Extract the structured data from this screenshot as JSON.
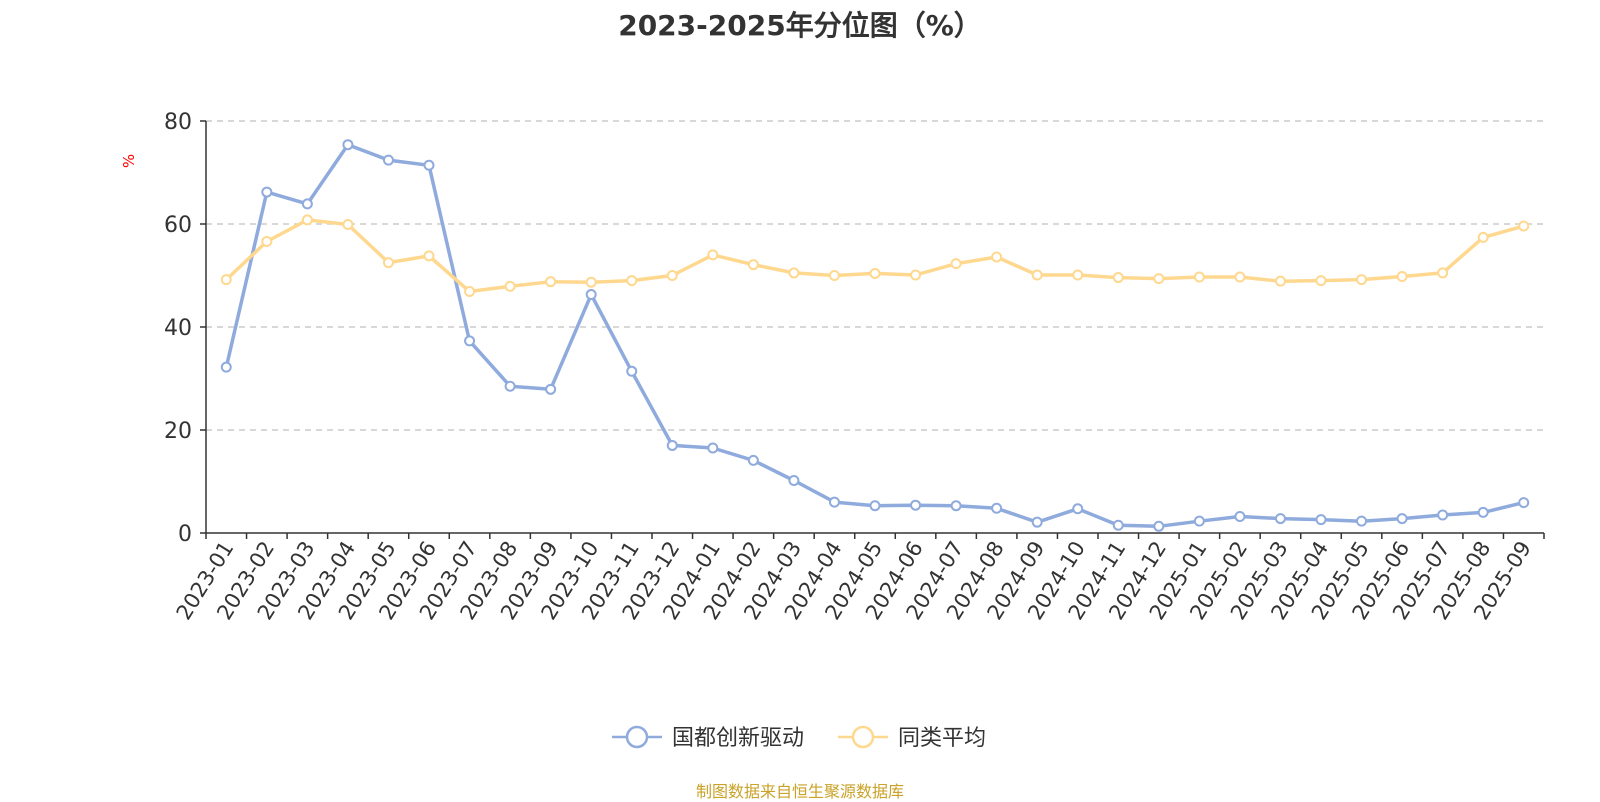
{
  "chart_data": {
    "type": "line",
    "title": "2023-2025年分位图（%）",
    "ylabel": "%",
    "xlabel": "",
    "ylim": [
      0,
      80
    ],
    "yticks": [
      0,
      20,
      40,
      60,
      80
    ],
    "grid": true,
    "legend_position": "bottom-center",
    "categories": [
      "2023-01",
      "2023-02",
      "2023-03",
      "2023-04",
      "2023-05",
      "2023-06",
      "2023-07",
      "2023-08",
      "2023-09",
      "2023-10",
      "2023-11",
      "2023-12",
      "2024-01",
      "2024-02",
      "2024-03",
      "2024-04",
      "2024-05",
      "2024-06",
      "2024-07",
      "2024-08",
      "2024-09",
      "2024-10",
      "2024-11",
      "2024-12",
      "2025-01",
      "2025-02",
      "2025-03",
      "2025-04",
      "2025-05",
      "2025-06",
      "2025-07",
      "2025-08",
      "2025-09"
    ],
    "series": [
      {
        "name": "国都创新驱动",
        "color": "#8faadc",
        "values": [
          32.2,
          66.2,
          63.9,
          75.4,
          72.4,
          71.4,
          37.3,
          28.5,
          27.9,
          46.3,
          31.4,
          17.0,
          16.5,
          14.1,
          10.2,
          6.0,
          5.3,
          5.4,
          5.3,
          4.8,
          2.1,
          4.7,
          1.5,
          1.3,
          2.3,
          3.2,
          2.8,
          2.6,
          2.3,
          2.8,
          3.5,
          4.0,
          5.9
        ]
      },
      {
        "name": "同类平均",
        "color": "#ffd88f",
        "values": [
          49.2,
          56.6,
          60.8,
          59.9,
          52.5,
          53.8,
          46.9,
          47.9,
          48.8,
          48.7,
          49.0,
          50.0,
          54.0,
          52.1,
          50.5,
          50.0,
          50.4,
          50.1,
          52.3,
          53.6,
          50.1,
          50.1,
          49.6,
          49.4,
          49.7,
          49.7,
          48.9,
          49.0,
          49.2,
          49.8,
          50.5,
          57.4,
          59.6
        ]
      }
    ]
  },
  "footer": {
    "source": "制图数据来自恒生聚源数据库"
  }
}
